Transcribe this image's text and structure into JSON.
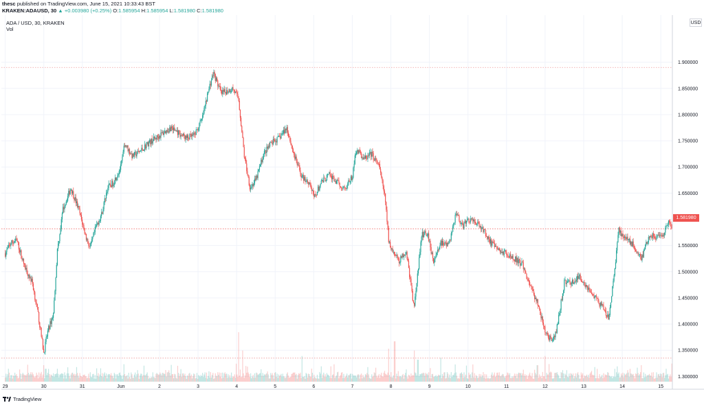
{
  "header": {
    "author": "thesc",
    "published_text": "published on TradingView.com, June 15, 2021 10:33:43 BST",
    "symbol": "KRAKEN:ADAUSD, 30",
    "change_arrow": "▲",
    "change": "+0.003980 (+0.25%)",
    "o_label": "O:",
    "o_value": "1.585954",
    "h_label": "H:",
    "h_value": "1.585954",
    "l_label": "L:",
    "l_value": "1.581980",
    "c_label": "C:",
    "c_value": "1.581980"
  },
  "legend": {
    "pair": "ADA / USD, 30, KRAKEN",
    "vol": "Vol"
  },
  "currency_label": "USD",
  "last_price_label": "1.581980",
  "branding": "TradingView",
  "colors": {
    "up": "#26a69a",
    "down": "#ef5350",
    "grid": "#f0f3fa",
    "axis_text": "#131722"
  },
  "chart_data": {
    "type": "candlestick",
    "symbol": "ADA/USD",
    "exchange": "KRAKEN",
    "interval": "30",
    "ylim": [
      1.29,
      1.99
    ],
    "ytick_labels": [
      "1.300000",
      "1.350000",
      "1.400000",
      "1.450000",
      "1.500000",
      "1.550000",
      "1.600000",
      "1.650000",
      "1.700000",
      "1.750000",
      "1.800000",
      "1.850000",
      "1.900000"
    ],
    "yticks": [
      1.3,
      1.35,
      1.4,
      1.45,
      1.5,
      1.55,
      1.6,
      1.65,
      1.7,
      1.75,
      1.8,
      1.85,
      1.9
    ],
    "xtick_labels": [
      "29",
      "30",
      "31",
      "Jun",
      "2",
      "3",
      "4",
      "5",
      "6",
      "7",
      "8",
      "9",
      "10",
      "11",
      "12",
      "13",
      "14",
      "15"
    ],
    "xticks": [
      0,
      1,
      2,
      3,
      4,
      5,
      6,
      7,
      8,
      9,
      10,
      11,
      12,
      13,
      14,
      15,
      16,
      17
    ],
    "x_range": [
      -0.1,
      17.3
    ],
    "last_price": 1.58198,
    "high_reference": 1.89,
    "low_reference": 1.335,
    "grid": true,
    "volume_shown": true,
    "price_path": [
      [
        0.0,
        1.535
      ],
      [
        0.15,
        1.555
      ],
      [
        0.3,
        1.56
      ],
      [
        0.5,
        1.51
      ],
      [
        0.7,
        1.48
      ],
      [
        0.85,
        1.42
      ],
      [
        0.95,
        1.37
      ],
      [
        1.0,
        1.345
      ],
      [
        1.1,
        1.385
      ],
      [
        1.25,
        1.42
      ],
      [
        1.35,
        1.54
      ],
      [
        1.5,
        1.62
      ],
      [
        1.7,
        1.66
      ],
      [
        1.9,
        1.62
      ],
      [
        2.1,
        1.565
      ],
      [
        2.2,
        1.545
      ],
      [
        2.35,
        1.585
      ],
      [
        2.5,
        1.61
      ],
      [
        2.65,
        1.66
      ],
      [
        2.8,
        1.67
      ],
      [
        3.0,
        1.7
      ],
      [
        3.1,
        1.745
      ],
      [
        3.3,
        1.72
      ],
      [
        3.5,
        1.73
      ],
      [
        3.7,
        1.745
      ],
      [
        3.9,
        1.755
      ],
      [
        4.1,
        1.765
      ],
      [
        4.3,
        1.775
      ],
      [
        4.5,
        1.765
      ],
      [
        4.7,
        1.755
      ],
      [
        4.9,
        1.76
      ],
      [
        5.1,
        1.79
      ],
      [
        5.3,
        1.855
      ],
      [
        5.4,
        1.88
      ],
      [
        5.6,
        1.84
      ],
      [
        5.9,
        1.85
      ],
      [
        6.05,
        1.83
      ],
      [
        6.2,
        1.72
      ],
      [
        6.35,
        1.66
      ],
      [
        6.5,
        1.675
      ],
      [
        6.7,
        1.725
      ],
      [
        6.9,
        1.745
      ],
      [
        7.1,
        1.755
      ],
      [
        7.3,
        1.775
      ],
      [
        7.5,
        1.72
      ],
      [
        7.7,
        1.68
      ],
      [
        7.9,
        1.67
      ],
      [
        8.0,
        1.64
      ],
      [
        8.2,
        1.67
      ],
      [
        8.4,
        1.685
      ],
      [
        8.6,
        1.67
      ],
      [
        8.8,
        1.66
      ],
      [
        9.0,
        1.68
      ],
      [
        9.1,
        1.735
      ],
      [
        9.3,
        1.715
      ],
      [
        9.5,
        1.725
      ],
      [
        9.7,
        1.7
      ],
      [
        9.85,
        1.64
      ],
      [
        9.95,
        1.555
      ],
      [
        10.05,
        1.54
      ],
      [
        10.2,
        1.52
      ],
      [
        10.4,
        1.54
      ],
      [
        10.6,
        1.43
      ],
      [
        10.8,
        1.57
      ],
      [
        10.95,
        1.575
      ],
      [
        11.1,
        1.52
      ],
      [
        11.3,
        1.555
      ],
      [
        11.5,
        1.55
      ],
      [
        11.7,
        1.615
      ],
      [
        11.85,
        1.585
      ],
      [
        12.0,
        1.6
      ],
      [
        12.2,
        1.595
      ],
      [
        12.4,
        1.58
      ],
      [
        12.6,
        1.555
      ],
      [
        12.8,
        1.54
      ],
      [
        13.0,
        1.535
      ],
      [
        13.2,
        1.525
      ],
      [
        13.4,
        1.515
      ],
      [
        13.6,
        1.475
      ],
      [
        13.8,
        1.44
      ],
      [
        14.0,
        1.385
      ],
      [
        14.2,
        1.365
      ],
      [
        14.3,
        1.39
      ],
      [
        14.5,
        1.48
      ],
      [
        14.7,
        1.48
      ],
      [
        14.9,
        1.49
      ],
      [
        15.1,
        1.47
      ],
      [
        15.3,
        1.45
      ],
      [
        15.5,
        1.43
      ],
      [
        15.65,
        1.41
      ],
      [
        15.8,
        1.5
      ],
      [
        15.9,
        1.58
      ],
      [
        16.05,
        1.565
      ],
      [
        16.3,
        1.55
      ],
      [
        16.5,
        1.525
      ],
      [
        16.7,
        1.57
      ],
      [
        16.9,
        1.565
      ],
      [
        17.05,
        1.565
      ],
      [
        17.2,
        1.595
      ],
      [
        17.3,
        1.585
      ]
    ],
    "volume_spikes": [
      [
        1.0,
        0.09
      ],
      [
        1.05,
        0.07
      ],
      [
        6.05,
        0.27
      ],
      [
        6.15,
        0.17
      ],
      [
        7.7,
        0.14
      ],
      [
        9.95,
        0.18
      ],
      [
        10.1,
        0.22
      ],
      [
        10.6,
        0.17
      ],
      [
        10.7,
        0.12
      ],
      [
        11.3,
        0.13
      ],
      [
        13.8,
        0.09
      ],
      [
        14.0,
        0.14
      ],
      [
        15.8,
        0.07
      ],
      [
        16.2,
        0.07
      ],
      [
        16.5,
        0.09
      ]
    ]
  }
}
